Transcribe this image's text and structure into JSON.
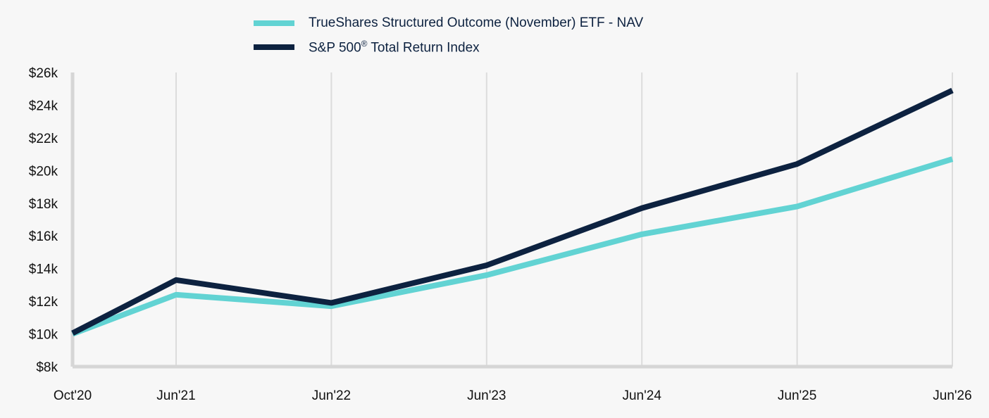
{
  "chart_data": {
    "type": "line",
    "x": [
      "Oct'20",
      "Jun'21",
      "Jun'22",
      "Jun'23",
      "Jun'24",
      "Jun'25",
      "Jun'26"
    ],
    "series": [
      {
        "name": "TrueShares Structured Outcome (November) ETF - NAV",
        "color": "#62d3d3",
        "values": [
          10000,
          12400,
          11700,
          13600,
          16100,
          17800,
          20700
        ]
      },
      {
        "name": "S&P 500® Total Return Index",
        "color": "#0d2240",
        "values": [
          10050,
          13300,
          11900,
          14200,
          17700,
          20400,
          24900
        ]
      }
    ],
    "yticks": [
      "$8k",
      "$10k",
      "$12k",
      "$14k",
      "$16k",
      "$18k",
      "$20k",
      "$22k",
      "$24k",
      "$26k"
    ],
    "ylim": [
      8000,
      26000
    ],
    "grid": "vertical",
    "legend": "top",
    "title": "",
    "xlabel": "",
    "ylabel": ""
  },
  "legend": {
    "items": [
      {
        "label": "TrueShares Structured Outcome (November) ETF - NAV",
        "color": "#62d3d3"
      },
      {
        "label_main": "S&P 500",
        "label_sup": "®",
        "label_rest": " Total Return Index",
        "color": "#0d2240"
      }
    ]
  }
}
